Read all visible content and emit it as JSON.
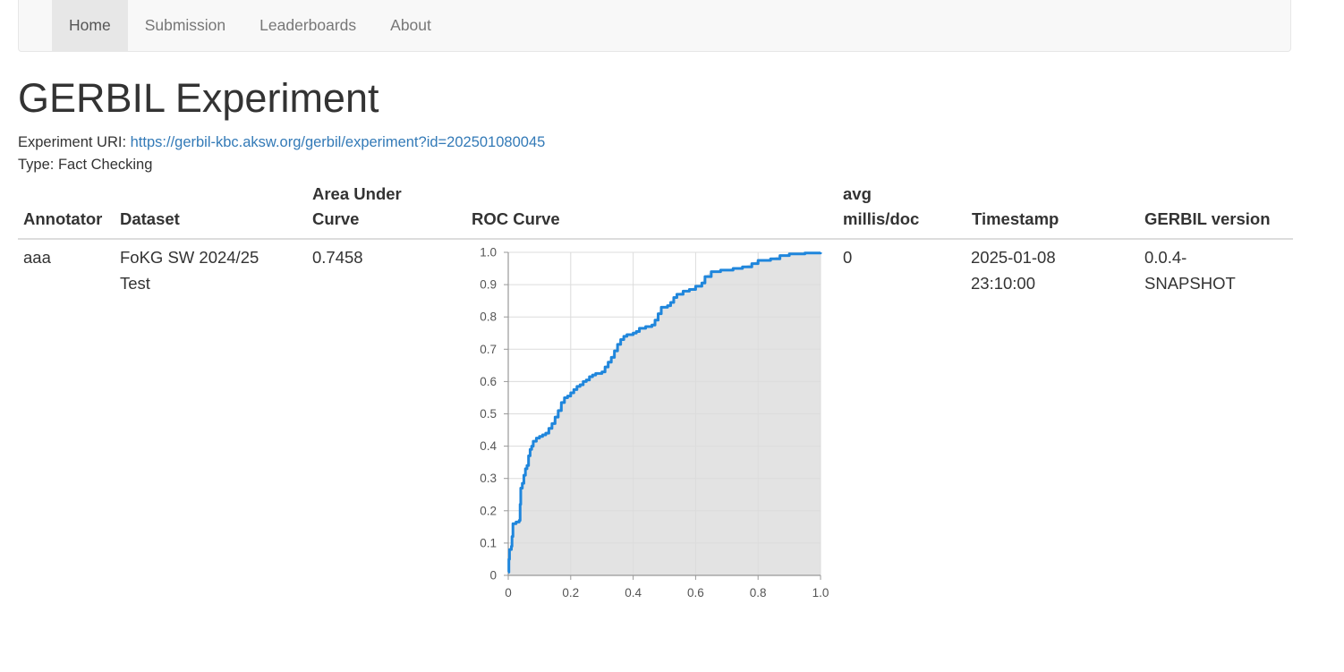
{
  "nav": {
    "items": [
      {
        "label": "Home",
        "active": true
      },
      {
        "label": "Submission",
        "active": false
      },
      {
        "label": "Leaderboards",
        "active": false
      },
      {
        "label": "About",
        "active": false
      }
    ]
  },
  "page": {
    "title": "GERBIL Experiment",
    "uri_label": "Experiment URI: ",
    "uri": "https://gerbil-kbc.aksw.org/gerbil/experiment?id=202501080045",
    "type_label": "Type: ",
    "type": "Fact Checking"
  },
  "table": {
    "headers": {
      "annotator": "Annotator",
      "dataset": "Dataset",
      "auc_line1": "Area Under",
      "auc_line2": "Curve",
      "roc": "ROC Curve",
      "millis_line1": "avg",
      "millis_line2": "millis/doc",
      "timestamp": "Timestamp",
      "version": "GERBIL version"
    },
    "row": {
      "annotator": "aaa",
      "dataset_line1": "FoKG SW 2024/25",
      "dataset_line2": "Test",
      "auc": "0.7458",
      "millis": "0",
      "timestamp_line1": "2025-01-08",
      "timestamp_line2": "23:10:00",
      "version_line1": "0.0.4-",
      "version_line2": "SNAPSHOT"
    }
  },
  "chart_data": {
    "type": "area",
    "xlim": [
      0,
      1
    ],
    "ylim": [
      0,
      1
    ],
    "x_ticks": [
      "0",
      "0.2",
      "0.4",
      "0.6",
      "0.8",
      "1.0"
    ],
    "y_ticks": [
      "0",
      "0.1",
      "0.2",
      "0.3",
      "0.4",
      "0.5",
      "0.6",
      "0.7",
      "0.8",
      "0.9",
      "1.0"
    ],
    "grid": true,
    "line_color": "#1f86dc",
    "fill_color": "#e3e3e3",
    "points": [
      [
        0,
        0.01
      ],
      [
        0.002,
        0.05
      ],
      [
        0.004,
        0.08
      ],
      [
        0.01,
        0.09
      ],
      [
        0.012,
        0.12
      ],
      [
        0.015,
        0.16
      ],
      [
        0.025,
        0.165
      ],
      [
        0.035,
        0.17
      ],
      [
        0.038,
        0.22
      ],
      [
        0.04,
        0.27
      ],
      [
        0.045,
        0.285
      ],
      [
        0.05,
        0.31
      ],
      [
        0.055,
        0.33
      ],
      [
        0.06,
        0.34
      ],
      [
        0.065,
        0.37
      ],
      [
        0.07,
        0.39
      ],
      [
        0.075,
        0.4
      ],
      [
        0.08,
        0.415
      ],
      [
        0.09,
        0.425
      ],
      [
        0.1,
        0.43
      ],
      [
        0.11,
        0.435
      ],
      [
        0.12,
        0.44
      ],
      [
        0.13,
        0.455
      ],
      [
        0.14,
        0.47
      ],
      [
        0.15,
        0.49
      ],
      [
        0.16,
        0.51
      ],
      [
        0.17,
        0.535
      ],
      [
        0.18,
        0.55
      ],
      [
        0.19,
        0.555
      ],
      [
        0.2,
        0.565
      ],
      [
        0.21,
        0.575
      ],
      [
        0.22,
        0.585
      ],
      [
        0.23,
        0.59
      ],
      [
        0.24,
        0.6
      ],
      [
        0.25,
        0.605
      ],
      [
        0.26,
        0.615
      ],
      [
        0.27,
        0.62
      ],
      [
        0.28,
        0.625
      ],
      [
        0.3,
        0.63
      ],
      [
        0.31,
        0.645
      ],
      [
        0.32,
        0.66
      ],
      [
        0.33,
        0.675
      ],
      [
        0.34,
        0.695
      ],
      [
        0.35,
        0.715
      ],
      [
        0.36,
        0.73
      ],
      [
        0.37,
        0.74
      ],
      [
        0.38,
        0.745
      ],
      [
        0.4,
        0.75
      ],
      [
        0.41,
        0.755
      ],
      [
        0.42,
        0.765
      ],
      [
        0.44,
        0.77
      ],
      [
        0.46,
        0.775
      ],
      [
        0.47,
        0.79
      ],
      [
        0.48,
        0.81
      ],
      [
        0.49,
        0.83
      ],
      [
        0.51,
        0.835
      ],
      [
        0.52,
        0.845
      ],
      [
        0.53,
        0.86
      ],
      [
        0.54,
        0.87
      ],
      [
        0.56,
        0.88
      ],
      [
        0.58,
        0.885
      ],
      [
        0.6,
        0.895
      ],
      [
        0.62,
        0.905
      ],
      [
        0.63,
        0.925
      ],
      [
        0.65,
        0.94
      ],
      [
        0.68,
        0.945
      ],
      [
        0.72,
        0.95
      ],
      [
        0.75,
        0.955
      ],
      [
        0.78,
        0.965
      ],
      [
        0.8,
        0.975
      ],
      [
        0.84,
        0.98
      ],
      [
        0.87,
        0.99
      ],
      [
        0.9,
        0.995
      ],
      [
        0.95,
        0.998
      ],
      [
        1.0,
        1.0
      ]
    ]
  }
}
